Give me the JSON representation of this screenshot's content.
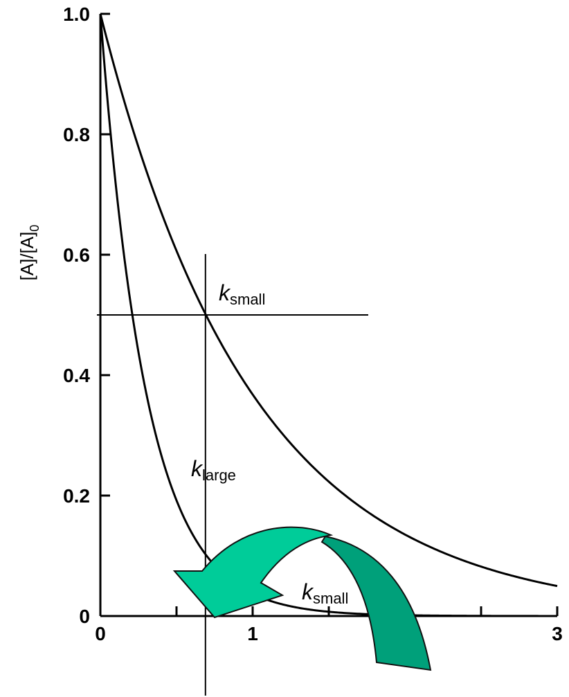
{
  "chart_data": {
    "type": "line",
    "ylabel": "[A]/[A]",
    "ylabel_subscript": "0",
    "xlim": [
      0,
      3
    ],
    "ylim": [
      0,
      1.0
    ],
    "x_ticks": [
      0,
      0.5,
      1,
      1.5,
      2,
      2.5,
      3
    ],
    "x_tick_labels": [
      {
        "x": 0,
        "label": "0"
      },
      {
        "x": 1,
        "label": "1"
      },
      {
        "x": 3,
        "label": "3"
      }
    ],
    "y_ticks": [
      0,
      0.2,
      0.4,
      0.6,
      0.8,
      1.0
    ],
    "y_tick_labels": [
      "0",
      "0.2",
      "0.4",
      "0.6",
      "0.8",
      "1.0"
    ],
    "series": [
      {
        "name": "k_small",
        "rate_constant": 1.0,
        "start": [
          0,
          1.0
        ]
      },
      {
        "name": "k_large",
        "rate_constant": 3.3,
        "start": [
          0,
          1.0
        ]
      }
    ],
    "half_life_marker": {
      "x": 0.69,
      "y": 0.5
    },
    "labels": [
      {
        "main": "k",
        "sub": "small"
      },
      {
        "main": "k",
        "sub": "large"
      },
      {
        "main": "k",
        "sub": "small"
      }
    ],
    "arrow_colors": {
      "light": "#00CC99",
      "dark": "#00A07A",
      "outline": "#111111"
    },
    "grid": false
  }
}
